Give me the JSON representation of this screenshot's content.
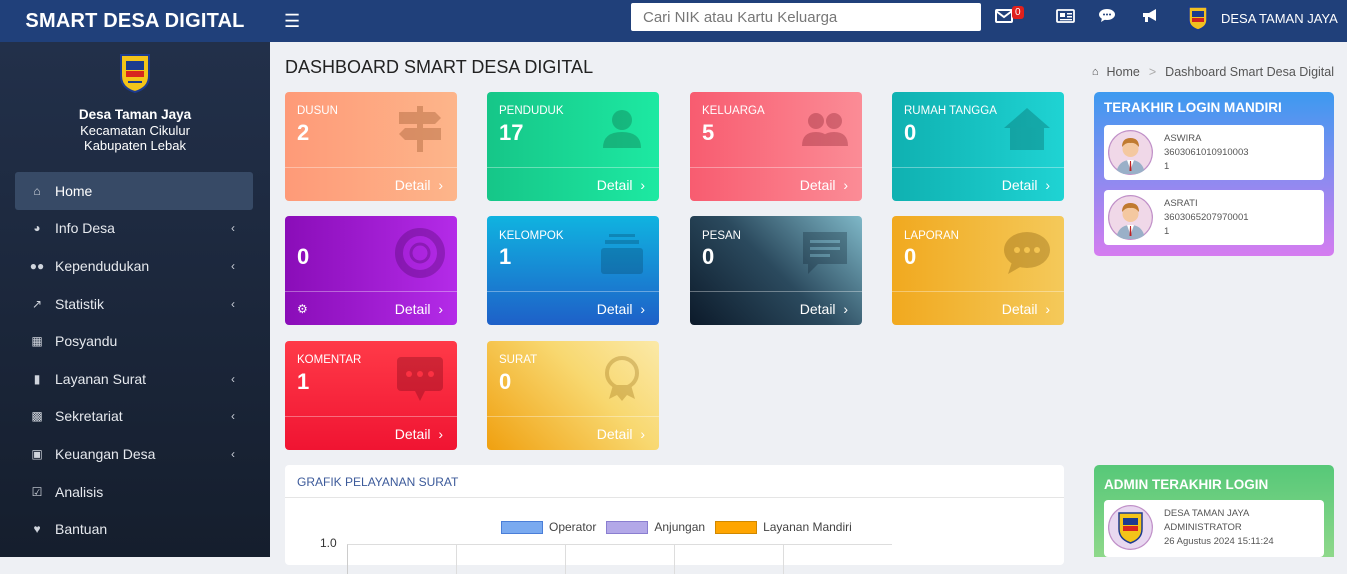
{
  "topbar": {
    "brand": "SMART DESA DIGITAL",
    "search_placeholder": "Cari NIK atau Kartu Keluarga",
    "mail_badge": "0",
    "village_label": "DESA TAMAN JAYA"
  },
  "sidebar": {
    "village_name": "Desa Taman Jaya",
    "district": "Kecamatan Cikulur",
    "regency": "Kabupaten Lebak",
    "items": [
      {
        "label": "Home",
        "icon": "home-icon",
        "active": true,
        "has_submenu": false
      },
      {
        "label": "Info Desa",
        "icon": "dashboard-icon",
        "active": false,
        "has_submenu": true
      },
      {
        "label": "Kependudukan",
        "icon": "users-icon",
        "active": false,
        "has_submenu": true
      },
      {
        "label": "Statistik",
        "icon": "line-chart-icon",
        "active": false,
        "has_submenu": true
      },
      {
        "label": "Posyandu",
        "icon": "hospital-icon",
        "active": false,
        "has_submenu": false
      },
      {
        "label": "Layanan Surat",
        "icon": "book-icon",
        "active": false,
        "has_submenu": true
      },
      {
        "label": "Sekretariat",
        "icon": "archive-icon",
        "active": false,
        "has_submenu": true
      },
      {
        "label": "Keuangan Desa",
        "icon": "money-icon",
        "active": false,
        "has_submenu": true
      },
      {
        "label": "Analisis",
        "icon": "check-square-icon",
        "active": false,
        "has_submenu": false
      },
      {
        "label": "Bantuan",
        "icon": "heart-icon",
        "active": false,
        "has_submenu": false
      }
    ]
  },
  "main": {
    "title": "DASHBOARD SMART DESA DIGITAL",
    "breadcrumb": {
      "home": "Home",
      "current": "Dashboard Smart Desa Digital"
    },
    "cards": [
      {
        "label": "DUSUN",
        "value": "2",
        "detail": "Detail",
        "icon": "signpost-icon"
      },
      {
        "label": "PENDUDUK",
        "value": "17",
        "detail": "Detail",
        "icon": "user-icon"
      },
      {
        "label": "KELUARGA",
        "value": "5",
        "detail": "Detail",
        "icon": "users-icon"
      },
      {
        "label": "RUMAH TANGGA",
        "value": "0",
        "detail": "Detail",
        "icon": "house-icon"
      },
      {
        "label": "",
        "value": "0",
        "detail": "Detail",
        "icon": "lifebuoy-icon"
      },
      {
        "label": "KELOMPOK",
        "value": "1",
        "detail": "Detail",
        "icon": "inbox-icon"
      },
      {
        "label": "PESAN",
        "value": "0",
        "detail": "Detail",
        "icon": "message-icon"
      },
      {
        "label": "LAPORAN",
        "value": "0",
        "detail": "Detail",
        "icon": "chat-bubble-icon"
      },
      {
        "label": "KOMENTAR",
        "value": "1",
        "detail": "Detail",
        "icon": "comment-icon"
      },
      {
        "label": "SURAT",
        "value": "0",
        "detail": "Detail",
        "icon": "certificate-icon"
      }
    ],
    "chart_panel": {
      "title": "GRAFIK PELAYANAN SURAT",
      "legend": [
        {
          "name": "Operator",
          "color": "#7aaaf0"
        },
        {
          "name": "Anjungan",
          "color": "#b3a8e8"
        },
        {
          "name": "Layanan Mandiri",
          "color": "#ffa500"
        }
      ],
      "y_tick_top": "1.0"
    }
  },
  "right": {
    "login_mandiri": {
      "title": "TERAKHIR LOGIN MANDIRI",
      "users": [
        {
          "name": "ASWIRA",
          "nik": "3603061010910003",
          "count": "1"
        },
        {
          "name": "ASRATI",
          "nik": "3603065207970001",
          "count": "1"
        }
      ]
    },
    "admin_login": {
      "title": "ADMIN TERAKHIR LOGIN",
      "name": "DESA TAMAN JAYA",
      "role": "ADMINISTRATOR",
      "time": "26 Agustus 2024 15:11:24"
    }
  }
}
